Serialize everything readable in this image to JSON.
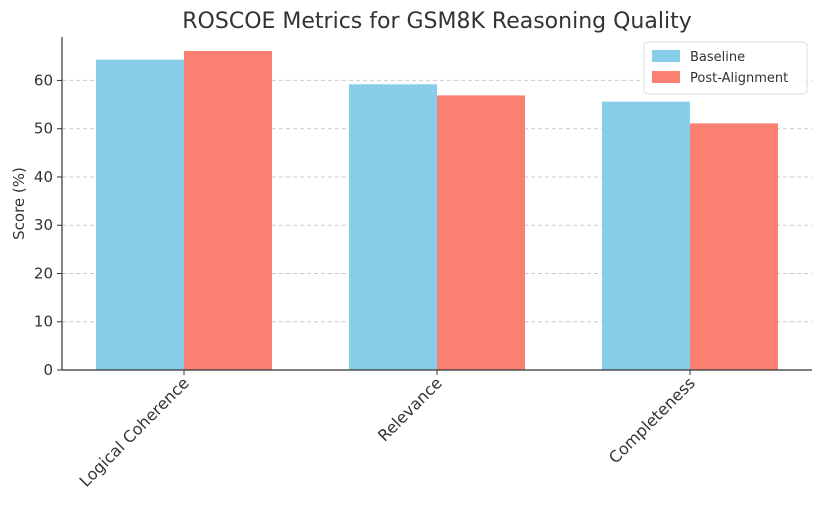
{
  "chart_data": {
    "type": "bar",
    "title": "ROSCOE Metrics for GSM8K Reasoning Quality",
    "xlabel": "",
    "ylabel": "Score (%)",
    "categories": [
      "Logical Coherence",
      "Relevance",
      "Completeness"
    ],
    "series": [
      {
        "name": "Baseline",
        "values": [
          64.3,
          59.2,
          55.6
        ],
        "color": "#87CEEB"
      },
      {
        "name": "Post-Alignment",
        "values": [
          66.1,
          56.9,
          51.1
        ],
        "color": "#FA8072"
      }
    ],
    "ylim": [
      0,
      69
    ],
    "yticks": [
      0,
      10,
      20,
      30,
      40,
      50,
      60
    ],
    "grid": true,
    "legend_position": "top-right"
  }
}
